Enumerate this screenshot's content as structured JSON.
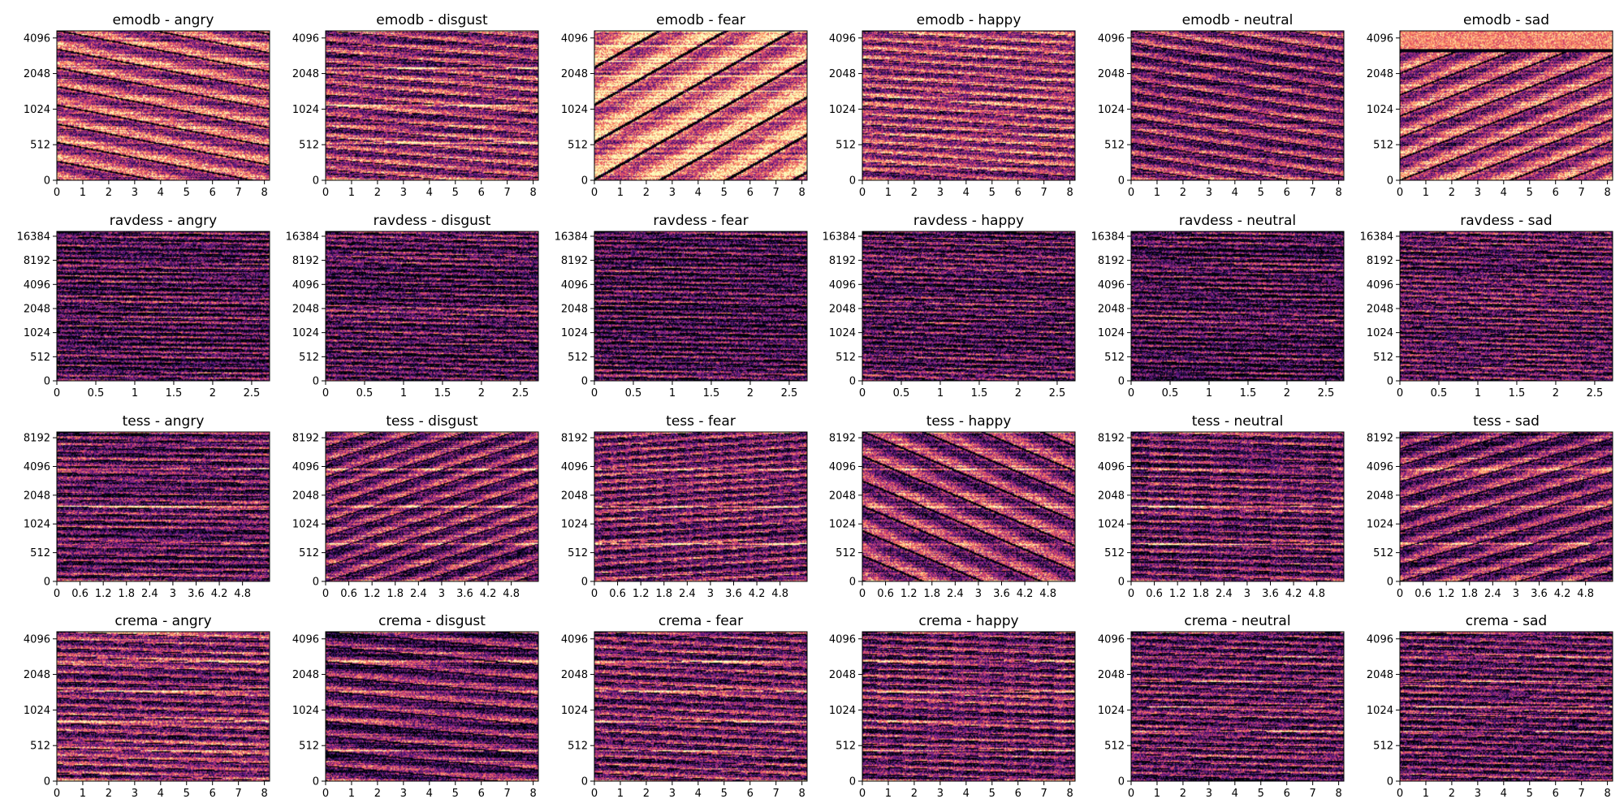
{
  "chart_data": {
    "type": "heatmap",
    "layout": "grid",
    "rows": 4,
    "cols": 6,
    "colormap": "magma",
    "yscale": "log",
    "colors": {
      "background": "#ffffff",
      "axis": "#000000",
      "colormap_stops": [
        "#000004",
        "#1c1044",
        "#4f127b",
        "#812581",
        "#b5367a",
        "#e55064",
        "#fb8761",
        "#fec287",
        "#fcfdbf"
      ]
    },
    "rows_data": [
      {
        "dataset": "emodb",
        "x_ticks": [
          "0",
          "1",
          "2",
          "3",
          "4",
          "5",
          "6",
          "7",
          "8"
        ],
        "x_tick_values": [
          0,
          1,
          2,
          3,
          4,
          5,
          6,
          7,
          8
        ],
        "xlim": [
          0,
          8.2
        ],
        "y_ticks": [
          "0",
          "512",
          "1024",
          "2048",
          "4096"
        ],
        "panels": [
          {
            "title": "emodb - angry",
            "emotion": "angry"
          },
          {
            "title": "emodb - disgust",
            "emotion": "disgust"
          },
          {
            "title": "emodb - fear",
            "emotion": "fear"
          },
          {
            "title": "emodb - happy",
            "emotion": "happy"
          },
          {
            "title": "emodb - neutral",
            "emotion": "neutral"
          },
          {
            "title": "emodb - sad",
            "emotion": "sad"
          }
        ]
      },
      {
        "dataset": "ravdess",
        "x_ticks": [
          "0",
          "0.5",
          "1",
          "1.5",
          "2",
          "2.5"
        ],
        "x_tick_values": [
          0,
          0.5,
          1,
          1.5,
          2,
          2.5
        ],
        "xlim": [
          0,
          2.73
        ],
        "y_ticks": [
          "0",
          "512",
          "1024",
          "2048",
          "4096",
          "8192",
          "16384"
        ],
        "panels": [
          {
            "title": "ravdess - angry",
            "emotion": "angry"
          },
          {
            "title": "ravdess - disgust",
            "emotion": "disgust"
          },
          {
            "title": "ravdess - fear",
            "emotion": "fear"
          },
          {
            "title": "ravdess - happy",
            "emotion": "happy"
          },
          {
            "title": "ravdess - neutral",
            "emotion": "neutral"
          },
          {
            "title": "ravdess - sad",
            "emotion": "sad"
          }
        ]
      },
      {
        "dataset": "tess",
        "x_ticks": [
          "0",
          "0.6",
          "1.2",
          "1.8",
          "2.4",
          "3",
          "3.6",
          "4.2",
          "4.8"
        ],
        "x_tick_values": [
          0,
          0.6,
          1.2,
          1.8,
          2.4,
          3,
          3.6,
          4.2,
          4.8
        ],
        "xlim": [
          0,
          5.5
        ],
        "y_ticks": [
          "0",
          "512",
          "1024",
          "2048",
          "4096",
          "8192"
        ],
        "panels": [
          {
            "title": "tess - angry",
            "emotion": "angry"
          },
          {
            "title": "tess - disgust",
            "emotion": "disgust"
          },
          {
            "title": "tess - fear",
            "emotion": "fear"
          },
          {
            "title": "tess - happy",
            "emotion": "happy"
          },
          {
            "title": "tess - neutral",
            "emotion": "neutral"
          },
          {
            "title": "tess - sad",
            "emotion": "sad"
          }
        ]
      },
      {
        "dataset": "crema",
        "x_ticks": [
          "0",
          "1",
          "2",
          "3",
          "4",
          "5",
          "6",
          "7",
          "8"
        ],
        "x_tick_values": [
          0,
          1,
          2,
          3,
          4,
          5,
          6,
          7,
          8
        ],
        "xlim": [
          0,
          8.2
        ],
        "y_ticks": [
          "0",
          "512",
          "1024",
          "2048",
          "4096"
        ],
        "panels": [
          {
            "title": "crema - angry",
            "emotion": "angry"
          },
          {
            "title": "crema - disgust",
            "emotion": "disgust"
          },
          {
            "title": "crema - fear",
            "emotion": "fear"
          },
          {
            "title": "crema - happy",
            "emotion": "happy"
          },
          {
            "title": "crema - neutral",
            "emotion": "neutral"
          },
          {
            "title": "crema - sad",
            "emotion": "sad"
          }
        ]
      }
    ]
  }
}
